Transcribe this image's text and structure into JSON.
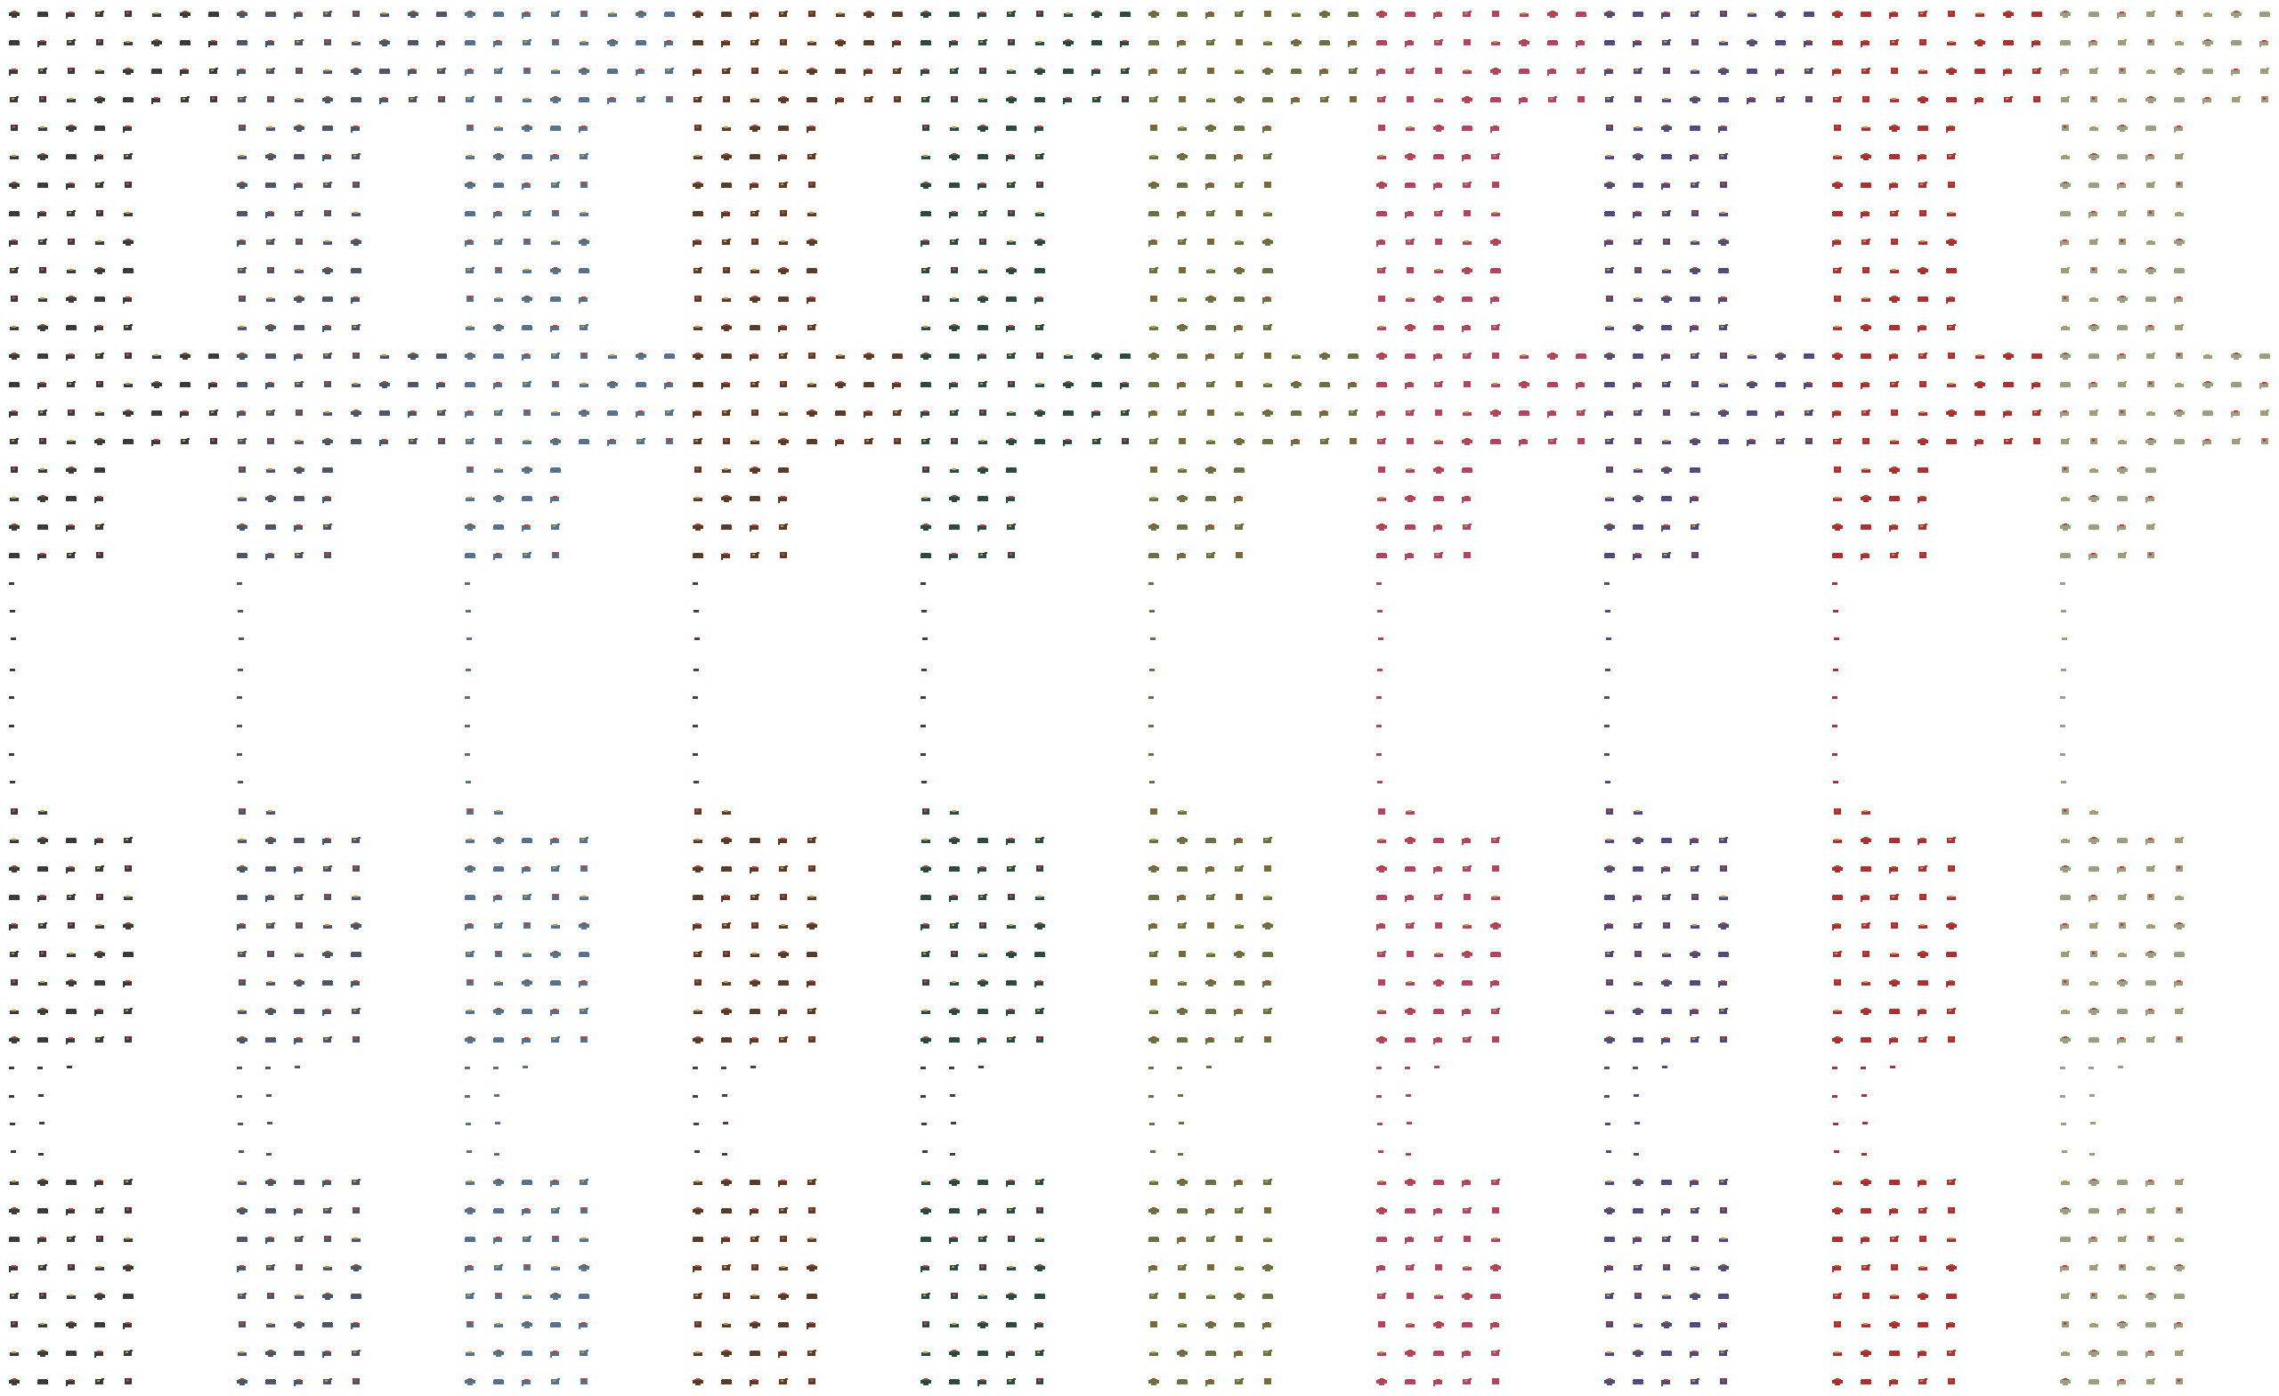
{
  "sheet": {
    "background": "#ffffff",
    "accent_colors": [
      "#c0432a",
      "#e0902a"
    ],
    "variants": [
      {
        "color": "#3d383d"
      },
      {
        "color": "#485868"
      },
      {
        "color": "#56708f"
      },
      {
        "color": "#5a3a2a"
      },
      {
        "color": "#2c4842"
      },
      {
        "color": "#6b7040"
      },
      {
        "color": "#b0465e"
      },
      {
        "color": "#4f4a80"
      },
      {
        "color": "#a83232"
      },
      {
        "color": "#a39a82"
      }
    ]
  }
}
